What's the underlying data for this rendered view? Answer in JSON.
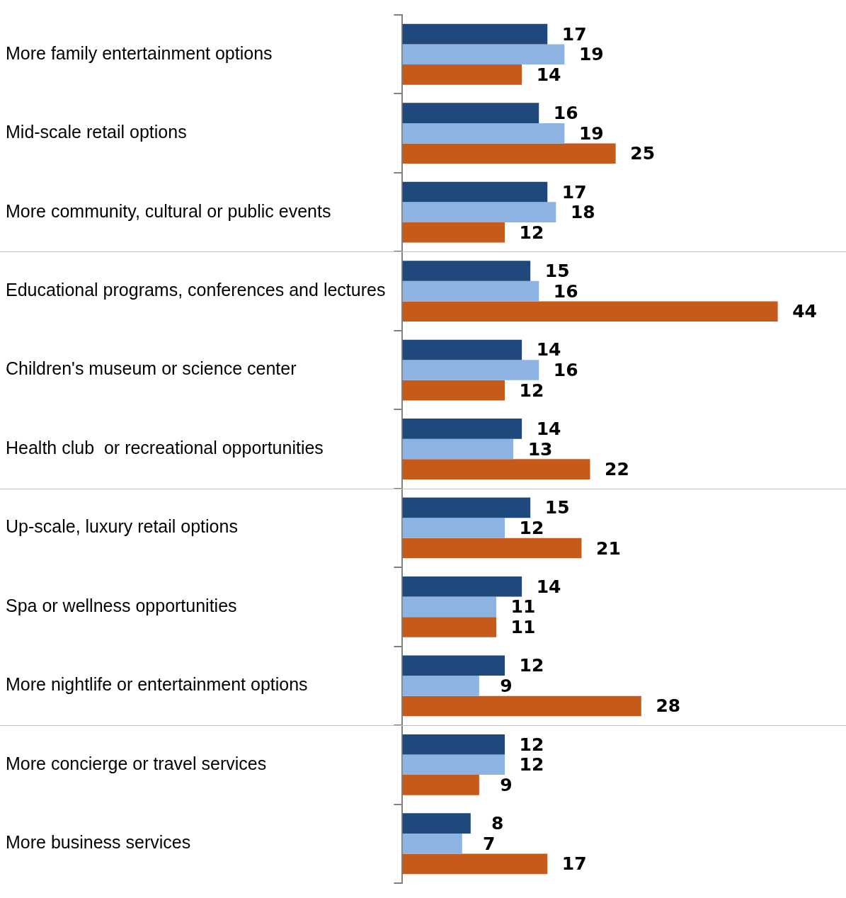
{
  "chart_data": {
    "type": "bar",
    "orientation": "horizontal",
    "categories": [
      "More family entertainment options",
      "Mid-scale retail options",
      "More community, cultural or public events",
      "Educational programs, conferences and lectures",
      "Children's museum or science center",
      "Health club  or recreational opportunities",
      "Up-scale, luxury retail options",
      "Spa or wellness opportunities",
      "More nightlife or entertainment options",
      "More concierge or travel services",
      "More business services"
    ],
    "series": [
      {
        "color": "#1f497d",
        "values": [
          17,
          16,
          17,
          15,
          14,
          14,
          15,
          14,
          12,
          12,
          8
        ]
      },
      {
        "color": "#8db3e2",
        "values": [
          19,
          19,
          18,
          16,
          16,
          13,
          12,
          11,
          9,
          12,
          7
        ]
      },
      {
        "color": "#c55a1b",
        "values": [
          14,
          25,
          12,
          44,
          12,
          22,
          21,
          11,
          28,
          9,
          17
        ]
      }
    ],
    "xlim": [
      0,
      52
    ],
    "data_labels": true,
    "legend": false,
    "tick_labels": "y"
  }
}
